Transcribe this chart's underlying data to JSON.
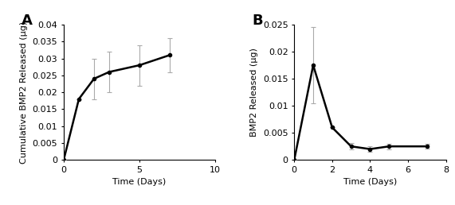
{
  "panel_A": {
    "label": "A",
    "x": [
      0,
      1,
      2,
      3,
      5,
      7
    ],
    "y": [
      0,
      0.018,
      0.024,
      0.026,
      0.028,
      0.031
    ],
    "yerr": [
      0,
      0.0,
      0.006,
      0.006,
      0.006,
      0.005
    ],
    "xlabel": "Time (Days)",
    "ylabel": "Cumulative BMP2 Released (μg)",
    "xlim": [
      0,
      10
    ],
    "ylim": [
      0,
      0.04
    ],
    "yticks": [
      0,
      0.005,
      0.01,
      0.015,
      0.02,
      0.025,
      0.03,
      0.035,
      0.04
    ],
    "xticks": [
      0,
      5,
      10
    ]
  },
  "panel_B": {
    "label": "B",
    "x": [
      0,
      1,
      2,
      3,
      4,
      5,
      7
    ],
    "y": [
      0,
      0.0175,
      0.006,
      0.0025,
      0.002,
      0.0025,
      0.0025
    ],
    "yerr": [
      0,
      0.007,
      0.0,
      0.0006,
      0.0005,
      0.0005,
      0.0004
    ],
    "xlabel": "Time (Days)",
    "ylabel": "BMP2 Released (μg)",
    "xlim": [
      0,
      8
    ],
    "ylim": [
      0,
      0.025
    ],
    "yticks": [
      0,
      0.005,
      0.01,
      0.015,
      0.02,
      0.025
    ],
    "xticks": [
      0,
      2,
      4,
      6,
      8
    ]
  },
  "line_color": "#000000",
  "marker": "o",
  "markersize": 3,
  "linewidth": 1.8,
  "error_color": "#aaaaaa",
  "capsize": 2,
  "font_size": 8,
  "label_font_size": 8,
  "panel_label_font_size": 13
}
